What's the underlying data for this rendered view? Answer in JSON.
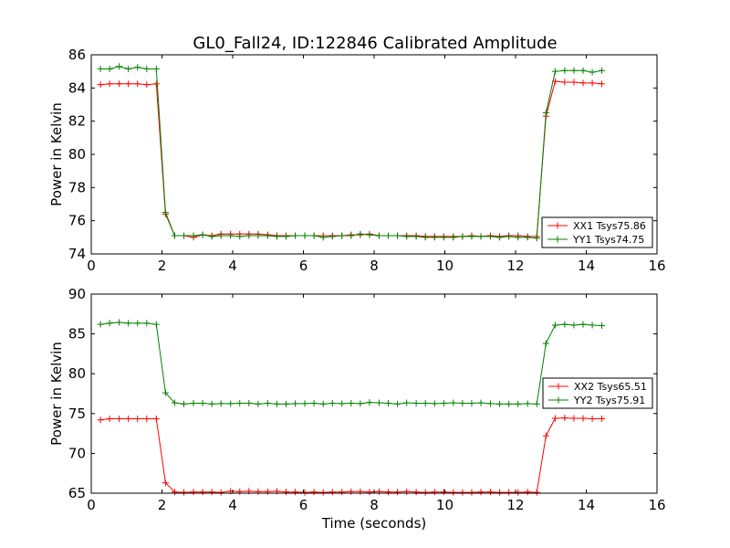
{
  "figure": {
    "title": "GL0_Fall24, ID:122846 Calibrated Amplitude",
    "xlabel": "Time (seconds)"
  },
  "chart_data": [
    {
      "type": "line",
      "title": "GL0_Fall24, ID:122846 Calibrated Amplitude",
      "xlabel": "",
      "ylabel": "Power in Kelvin",
      "xlim": [
        0,
        16
      ],
      "ylim": [
        74,
        86
      ],
      "x_ticks": [
        "0",
        "2",
        "4",
        "6",
        "8",
        "10",
        "12",
        "14",
        "16"
      ],
      "y_ticks": [
        "74",
        "76",
        "78",
        "80",
        "82",
        "84",
        "86"
      ],
      "grid": false,
      "legend_position": "lower-right",
      "x": [
        0.26,
        0.52,
        0.79,
        1.05,
        1.31,
        1.57,
        1.84,
        2.1,
        2.36,
        2.62,
        2.89,
        3.15,
        3.41,
        3.67,
        3.94,
        4.2,
        4.46,
        4.72,
        4.99,
        5.25,
        5.51,
        5.77,
        6.04,
        6.3,
        6.56,
        6.82,
        7.09,
        7.35,
        7.61,
        7.87,
        8.14,
        8.4,
        8.66,
        8.92,
        9.19,
        9.45,
        9.71,
        9.97,
        10.24,
        10.5,
        10.76,
        11.02,
        11.29,
        11.55,
        11.81,
        12.07,
        12.34,
        12.6,
        12.86,
        13.12,
        13.39,
        13.65,
        13.91,
        14.17,
        14.44
      ],
      "series": [
        {
          "name": "XX1 Tsys75.86",
          "color": "#ff0000",
          "values": [
            84.2,
            84.25,
            84.25,
            84.25,
            84.25,
            84.2,
            84.25,
            76.4,
            75.1,
            75.1,
            75.0,
            75.15,
            75.1,
            75.2,
            75.2,
            75.2,
            75.2,
            75.2,
            75.15,
            75.1,
            75.1,
            75.1,
            75.1,
            75.1,
            75.1,
            75.1,
            75.1,
            75.15,
            75.15,
            75.2,
            75.1,
            75.1,
            75.1,
            75.1,
            75.1,
            75.05,
            75.05,
            75.05,
            75.05,
            75.05,
            75.1,
            75.05,
            75.1,
            75.05,
            75.1,
            75.1,
            75.05,
            75.05,
            82.3,
            84.4,
            84.35,
            84.35,
            84.3,
            84.3,
            84.25
          ]
        },
        {
          "name": "YY1 Tsys74.75",
          "color": "#008000",
          "values": [
            85.15,
            85.15,
            85.3,
            85.15,
            85.25,
            85.15,
            85.15,
            76.5,
            75.1,
            75.1,
            75.1,
            75.15,
            75.05,
            75.1,
            75.1,
            75.05,
            75.1,
            75.1,
            75.1,
            75.05,
            75.05,
            75.1,
            75.1,
            75.1,
            75.0,
            75.05,
            75.1,
            75.1,
            75.2,
            75.15,
            75.1,
            75.1,
            75.1,
            75.05,
            75.05,
            75.0,
            75.0,
            75.0,
            75.0,
            75.05,
            75.05,
            75.05,
            75.05,
            75.0,
            75.05,
            75.0,
            75.0,
            74.95,
            82.5,
            85.0,
            85.05,
            85.05,
            85.05,
            84.95,
            85.05
          ]
        }
      ]
    },
    {
      "type": "line",
      "title": "",
      "xlabel": "Time (seconds)",
      "ylabel": "Power in Kelvin",
      "xlim": [
        0,
        16
      ],
      "ylim": [
        65,
        90
      ],
      "x_ticks": [
        "0",
        "2",
        "4",
        "6",
        "8",
        "10",
        "12",
        "14",
        "16"
      ],
      "y_ticks": [
        "65",
        "70",
        "75",
        "80",
        "85",
        "90"
      ],
      "grid": false,
      "legend_position": "right",
      "x": [
        0.26,
        0.52,
        0.79,
        1.05,
        1.31,
        1.57,
        1.84,
        2.1,
        2.36,
        2.62,
        2.89,
        3.15,
        3.41,
        3.67,
        3.94,
        4.2,
        4.46,
        4.72,
        4.99,
        5.25,
        5.51,
        5.77,
        6.04,
        6.3,
        6.56,
        6.82,
        7.09,
        7.35,
        7.61,
        7.87,
        8.14,
        8.4,
        8.66,
        8.92,
        9.19,
        9.45,
        9.71,
        9.97,
        10.24,
        10.5,
        10.76,
        11.02,
        11.29,
        11.55,
        11.81,
        12.07,
        12.34,
        12.6,
        12.86,
        13.12,
        13.39,
        13.65,
        13.91,
        14.17,
        14.44
      ],
      "series": [
        {
          "name": "XX2 Tsys65.51",
          "color": "#ff0000",
          "values": [
            74.2,
            74.35,
            74.35,
            74.35,
            74.35,
            74.35,
            74.35,
            66.3,
            65.15,
            65.1,
            65.15,
            65.15,
            65.15,
            65.1,
            65.25,
            65.2,
            65.25,
            65.2,
            65.2,
            65.25,
            65.15,
            65.15,
            65.1,
            65.15,
            65.1,
            65.15,
            65.15,
            65.2,
            65.2,
            65.15,
            65.2,
            65.15,
            65.15,
            65.2,
            65.15,
            65.1,
            65.15,
            65.15,
            65.1,
            65.1,
            65.1,
            65.15,
            65.15,
            65.1,
            65.1,
            65.1,
            65.15,
            65.1,
            72.2,
            74.4,
            74.45,
            74.4,
            74.4,
            74.35,
            74.35
          ]
        },
        {
          "name": "YY2 Tsys75.91",
          "color": "#008000",
          "values": [
            86.2,
            86.35,
            86.45,
            86.35,
            86.35,
            86.35,
            86.2,
            77.6,
            76.35,
            76.2,
            76.3,
            76.3,
            76.2,
            76.25,
            76.25,
            76.3,
            76.3,
            76.2,
            76.3,
            76.2,
            76.2,
            76.25,
            76.25,
            76.3,
            76.2,
            76.3,
            76.25,
            76.3,
            76.25,
            76.4,
            76.35,
            76.3,
            76.2,
            76.35,
            76.3,
            76.3,
            76.25,
            76.3,
            76.35,
            76.3,
            76.3,
            76.35,
            76.25,
            76.2,
            76.2,
            76.2,
            76.25,
            76.2,
            83.8,
            86.1,
            86.2,
            86.1,
            86.2,
            86.1,
            86.05
          ]
        }
      ]
    }
  ]
}
